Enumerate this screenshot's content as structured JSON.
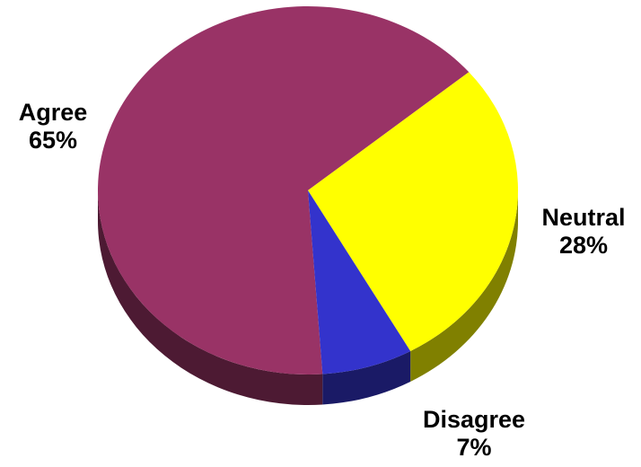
{
  "chart_data": {
    "type": "pie",
    "title": "",
    "slices": [
      {
        "label": "Agree",
        "value": 65,
        "value_label": "65%",
        "color": "#993366",
        "side_color": "#4d1a33"
      },
      {
        "label": "Neutral",
        "value": 28,
        "value_label": "28%",
        "color": "#ffff00",
        "side_color": "#808000"
      },
      {
        "label": "Disagree",
        "value": 7,
        "value_label": "7%",
        "color": "#3333cc",
        "side_color": "#1a1a66"
      }
    ],
    "style": "3d-tilted",
    "legend": "none",
    "labels_position": "outside"
  }
}
